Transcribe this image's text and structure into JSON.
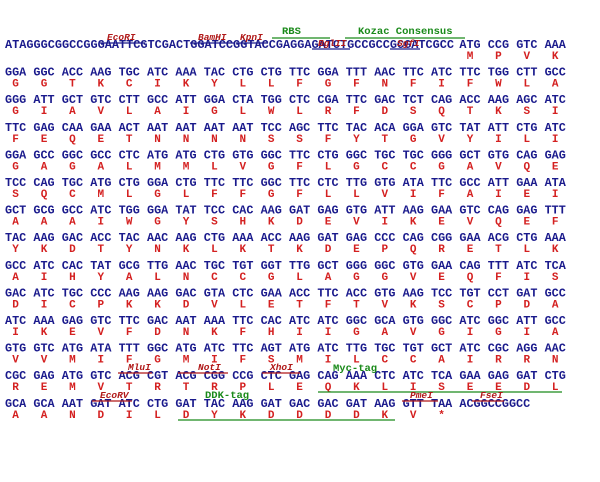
{
  "lead_sequence": "ATAGGGCGGCCGGGAATTCGTCGACTGGATCCGGTACCGAGGAGATCTGCCGCCGCGATCGCC",
  "lead_codons": [
    "ATG",
    "CCG",
    "GTC",
    "AAA"
  ],
  "lead_amino_acids": [
    "M",
    "P",
    "V",
    "K"
  ],
  "rows": [
    {
      "codons": [
        "GGA",
        "GGC",
        "ACC",
        "AAG",
        "TGC",
        "ATC",
        "AAA",
        "TAC",
        "CTG",
        "CTG",
        "TTC",
        "GGA",
        "TTT",
        "AAC",
        "TTC",
        "ATC",
        "TTC",
        "TGG",
        "CTT",
        "GCC"
      ],
      "amino_acids": [
        "G",
        "G",
        "T",
        "K",
        "C",
        "I",
        "K",
        "Y",
        "L",
        "L",
        "F",
        "G",
        "F",
        "N",
        "F",
        "I",
        "F",
        "W",
        "L",
        "A"
      ]
    },
    {
      "codons": [
        "GGG",
        "ATT",
        "GCT",
        "GTC",
        "CTT",
        "GCC",
        "ATT",
        "GGA",
        "CTA",
        "TGG",
        "CTC",
        "CGA",
        "TTC",
        "GAC",
        "TCT",
        "CAG",
        "ACC",
        "AAG",
        "AGC",
        "ATC"
      ],
      "amino_acids": [
        "G",
        "I",
        "A",
        "V",
        "L",
        "A",
        "I",
        "G",
        "L",
        "W",
        "L",
        "R",
        "F",
        "D",
        "S",
        "Q",
        "T",
        "K",
        "S",
        "I"
      ]
    },
    {
      "codons": [
        "TTC",
        "GAG",
        "CAA",
        "GAA",
        "ACT",
        "AAT",
        "AAT",
        "AAT",
        "AAT",
        "TCC",
        "AGC",
        "TTC",
        "TAC",
        "ACA",
        "GGA",
        "GTC",
        "TAT",
        "ATT",
        "CTG",
        "ATC"
      ],
      "amino_acids": [
        "F",
        "E",
        "Q",
        "E",
        "T",
        "N",
        "N",
        "N",
        "N",
        "S",
        "S",
        "F",
        "Y",
        "T",
        "G",
        "V",
        "Y",
        "I",
        "L",
        "I"
      ]
    },
    {
      "codons": [
        "GGA",
        "GCC",
        "GGC",
        "GCC",
        "CTC",
        "ATG",
        "ATG",
        "CTG",
        "GTG",
        "GGC",
        "TTC",
        "CTG",
        "GGC",
        "TGC",
        "TGC",
        "GGG",
        "GCT",
        "GTG",
        "CAG",
        "GAG"
      ],
      "amino_acids": [
        "G",
        "A",
        "G",
        "A",
        "L",
        "M",
        "M",
        "L",
        "V",
        "G",
        "F",
        "L",
        "G",
        "C",
        "C",
        "G",
        "A",
        "V",
        "Q",
        "E"
      ]
    },
    {
      "codons": [
        "TCC",
        "CAG",
        "TGC",
        "ATG",
        "CTG",
        "GGA",
        "CTG",
        "TTC",
        "TTC",
        "GGC",
        "TTC",
        "CTC",
        "TTG",
        "GTG",
        "ATA",
        "TTC",
        "GCC",
        "ATT",
        "GAA",
        "ATA"
      ],
      "amino_acids": [
        "S",
        "Q",
        "C",
        "M",
        "L",
        "G",
        "L",
        "F",
        "F",
        "G",
        "F",
        "L",
        "L",
        "V",
        "I",
        "F",
        "A",
        "I",
        "E",
        "I"
      ]
    },
    {
      "codons": [
        "GCT",
        "GCG",
        "GCC",
        "ATC",
        "TGG",
        "GGA",
        "TAT",
        "TCC",
        "CAC",
        "AAG",
        "GAT",
        "GAG",
        "GTG",
        "ATT",
        "AAG",
        "GAA",
        "GTC",
        "CAG",
        "GAG",
        "TTT"
      ],
      "amino_acids": [
        "A",
        "A",
        "A",
        "I",
        "W",
        "G",
        "Y",
        "S",
        "H",
        "K",
        "D",
        "E",
        "V",
        "I",
        "K",
        "E",
        "V",
        "Q",
        "E",
        "F"
      ]
    },
    {
      "codons": [
        "TAC",
        "AAG",
        "GAC",
        "ACC",
        "TAC",
        "AAC",
        "AAG",
        "CTG",
        "AAA",
        "ACC",
        "AAG",
        "GAT",
        "GAG",
        "CCC",
        "CAG",
        "CGG",
        "GAA",
        "ACG",
        "CTG",
        "AAA"
      ],
      "amino_acids": [
        "Y",
        "K",
        "D",
        "T",
        "Y",
        "N",
        "K",
        "L",
        "K",
        "T",
        "K",
        "D",
        "E",
        "P",
        "Q",
        "R",
        "E",
        "T",
        "L",
        "K"
      ]
    },
    {
      "codons": [
        "GCC",
        "ATC",
        "CAC",
        "TAT",
        "GCG",
        "TTG",
        "AAC",
        "TGC",
        "TGT",
        "GGT",
        "TTG",
        "GCT",
        "GGG",
        "GGC",
        "GTG",
        "GAA",
        "CAG",
        "TTT",
        "ATC",
        "TCA"
      ],
      "amino_acids": [
        "A",
        "I",
        "H",
        "Y",
        "A",
        "L",
        "N",
        "C",
        "C",
        "G",
        "L",
        "A",
        "G",
        "G",
        "V",
        "E",
        "Q",
        "F",
        "I",
        "S"
      ]
    },
    {
      "codons": [
        "GAC",
        "ATC",
        "TGC",
        "CCC",
        "AAG",
        "AAG",
        "GAC",
        "GTA",
        "CTC",
        "GAA",
        "ACC",
        "TTC",
        "ACC",
        "GTG",
        "AAG",
        "TCC",
        "TGT",
        "CCT",
        "GAT",
        "GCC"
      ],
      "amino_acids": [
        "D",
        "I",
        "C",
        "P",
        "K",
        "K",
        "D",
        "V",
        "L",
        "E",
        "T",
        "F",
        "T",
        "V",
        "K",
        "S",
        "C",
        "P",
        "D",
        "A"
      ]
    },
    {
      "codons": [
        "ATC",
        "AAA",
        "GAG",
        "GTC",
        "TTC",
        "GAC",
        "AAT",
        "AAA",
        "TTC",
        "CAC",
        "ATC",
        "ATC",
        "GGC",
        "GCA",
        "GTG",
        "GGC",
        "ATC",
        "GGC",
        "ATT",
        "GCC"
      ],
      "amino_acids": [
        "I",
        "K",
        "E",
        "V",
        "F",
        "D",
        "N",
        "K",
        "F",
        "H",
        "I",
        "I",
        "G",
        "A",
        "V",
        "G",
        "I",
        "G",
        "I",
        "A"
      ]
    },
    {
      "codons": [
        "GTG",
        "GTC",
        "ATG",
        "ATA",
        "TTT",
        "GGC",
        "ATG",
        "ATC",
        "TTC",
        "AGT",
        "ATG",
        "ATC",
        "TTG",
        "TGC",
        "TGT",
        "GCT",
        "ATC",
        "CGC",
        "AGG",
        "AAC"
      ],
      "amino_acids": [
        "V",
        "V",
        "M",
        "I",
        "F",
        "G",
        "M",
        "I",
        "F",
        "S",
        "M",
        "I",
        "L",
        "C",
        "C",
        "A",
        "I",
        "R",
        "R",
        "N"
      ]
    },
    {
      "codons": [
        "CGC",
        "GAG",
        "ATG",
        "GTC",
        "ACG",
        "CGT",
        "ACG",
        "CGG",
        "CCG",
        "CTC",
        "GAG",
        "CAG",
        "AAA",
        "CTC",
        "ATC",
        "TCA",
        "GAA",
        "GAG",
        "GAT",
        "CTG"
      ],
      "amino_acids": [
        "R",
        "E",
        "M",
        "V",
        "T",
        "R",
        "T",
        "R",
        "P",
        "L",
        "E",
        "Q",
        "K",
        "L",
        "I",
        "S",
        "E",
        "E",
        "D",
        "L"
      ]
    },
    {
      "codons": [
        "GCA",
        "GCA",
        "AAT",
        "GAT",
        "ATC",
        "CTG",
        "GAT",
        "TAC",
        "AAG",
        "GAT",
        "GAC",
        "GAC",
        "GAT",
        "AAG",
        "GTT",
        "TAA"
      ],
      "amino_acids": [
        "A",
        "A",
        "N",
        "D",
        "I",
        "L",
        "D",
        "Y",
        "K",
        "D",
        "D",
        "D",
        "D",
        "K",
        "V",
        "*"
      ]
    }
  ],
  "tail_sequence": "ACGGCCGGCC",
  "features": [
    {
      "label": "EcoRI",
      "kind": "site"
    },
    {
      "label": "BamHI",
      "kind": "site"
    },
    {
      "label": "KpnI",
      "kind": "site"
    },
    {
      "label": "RBS",
      "kind": "tag"
    },
    {
      "label": "BglII",
      "kind": "site"
    },
    {
      "label": "Kozac Consensus",
      "kind": "tag"
    },
    {
      "label": "SgfI",
      "kind": "site"
    },
    {
      "label": "MluI",
      "kind": "site"
    },
    {
      "label": "NotI",
      "kind": "site"
    },
    {
      "label": "XhoI",
      "kind": "site"
    },
    {
      "label": "Myc-tag",
      "kind": "tag"
    },
    {
      "label": "EcoRV",
      "kind": "site"
    },
    {
      "label": "DDK-tag",
      "kind": "tag"
    },
    {
      "label": "PmeI",
      "kind": "site"
    },
    {
      "label": "FseI",
      "kind": "site"
    }
  ]
}
